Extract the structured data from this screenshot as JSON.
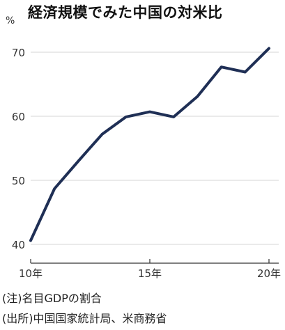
{
  "title": "経済規模でみた中国の対米比",
  "unit": "%",
  "notes": {
    "note": "(注)名目GDPの割合",
    "source": "(出所)中国国家統計局、米商務省"
  },
  "colors": {
    "line": "#1f2f55",
    "grid": "#d4d4d4",
    "axis": "#333333"
  },
  "chart_data": {
    "type": "line",
    "title": "経済規模でみた中国の対米比",
    "ylabel": "%",
    "xlabel": "",
    "x": [
      2010,
      2011,
      2012,
      2013,
      2014,
      2015,
      2016,
      2017,
      2018,
      2019,
      2020
    ],
    "values": [
      40.6,
      48.7,
      53.0,
      57.2,
      59.9,
      60.7,
      59.9,
      63.1,
      67.7,
      66.9,
      70.6
    ],
    "ylim": [
      38,
      73
    ],
    "xlim": [
      2010,
      2020
    ],
    "yticks": [
      40,
      50,
      60,
      70
    ],
    "ytick_labels": [
      "40",
      "50",
      "60",
      "70"
    ],
    "xticks": [
      2010,
      2015,
      2020
    ],
    "xtick_labels": [
      "10年",
      "15年",
      "20年"
    ],
    "grid": "horizontal"
  }
}
